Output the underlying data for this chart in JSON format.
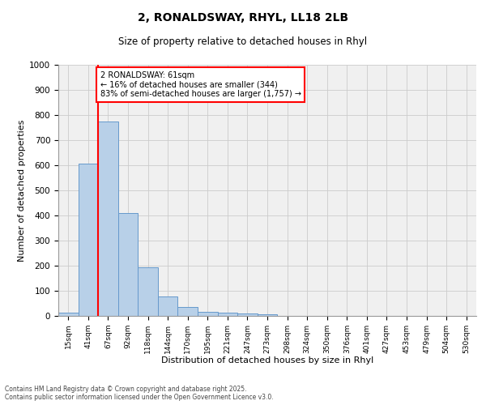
{
  "title_line1": "2, RONALDSWAY, RHYL, LL18 2LB",
  "title_line2": "Size of property relative to detached houses in Rhyl",
  "xlabel": "Distribution of detached houses by size in Rhyl",
  "ylabel": "Number of detached properties",
  "categories": [
    "15sqm",
    "41sqm",
    "67sqm",
    "92sqm",
    "118sqm",
    "144sqm",
    "170sqm",
    "195sqm",
    "221sqm",
    "247sqm",
    "273sqm",
    "298sqm",
    "324sqm",
    "350sqm",
    "376sqm",
    "401sqm",
    "427sqm",
    "453sqm",
    "479sqm",
    "504sqm",
    "530sqm"
  ],
  "values": [
    12,
    605,
    775,
    410,
    193,
    76,
    35,
    15,
    14,
    10,
    5,
    0,
    0,
    0,
    0,
    0,
    0,
    0,
    0,
    0,
    0
  ],
  "bar_color": "#b8d0e8",
  "bar_edge_color": "#6699cc",
  "vline_x": 1.5,
  "vline_color": "red",
  "annotation_text": "2 RONALDSWAY: 61sqm\n← 16% of detached houses are smaller (344)\n83% of semi-detached houses are larger (1,757) →",
  "annotation_box_color": "white",
  "annotation_box_edge_color": "red",
  "ylim": [
    0,
    1000
  ],
  "yticks": [
    0,
    100,
    200,
    300,
    400,
    500,
    600,
    700,
    800,
    900,
    1000
  ],
  "grid_color": "#cccccc",
  "bg_color": "#f0f0f0",
  "footer_line1": "Contains HM Land Registry data © Crown copyright and database right 2025.",
  "footer_line2": "Contains public sector information licensed under the Open Government Licence v3.0."
}
